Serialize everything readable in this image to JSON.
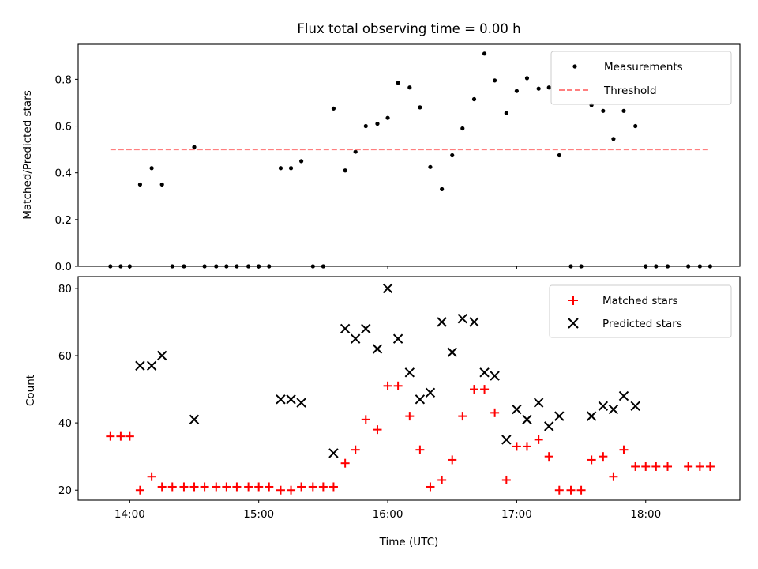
{
  "chart_data": [
    {
      "type": "scatter",
      "title": "Flux total observing time = 0.00 h",
      "xlabel": "",
      "ylabel": "Matched/Predicted stars",
      "xlim": [
        13.6,
        18.73
      ],
      "ylim": [
        0,
        0.95
      ],
      "yticks": [
        0.0,
        0.2,
        0.4,
        0.6,
        0.8
      ],
      "ytick_labels": [
        "0.0",
        "0.2",
        "0.4",
        "0.6",
        "0.8"
      ],
      "xticks": [
        14,
        15,
        16,
        17,
        18
      ],
      "legend_position": "top-right",
      "series": [
        {
          "name": "Measurements",
          "marker": "dot",
          "color": "#000000",
          "points": [
            [
              13.85,
              0.0
            ],
            [
              13.93,
              0.0
            ],
            [
              14.0,
              0.0
            ],
            [
              14.08,
              0.35
            ],
            [
              14.17,
              0.42
            ],
            [
              14.25,
              0.35
            ],
            [
              14.33,
              0.0
            ],
            [
              14.42,
              0.0
            ],
            [
              14.5,
              0.51
            ],
            [
              14.58,
              0.0
            ],
            [
              14.67,
              0.0
            ],
            [
              14.75,
              0.0
            ],
            [
              14.83,
              0.0
            ],
            [
              14.92,
              0.0
            ],
            [
              15.0,
              0.0
            ],
            [
              15.08,
              0.0
            ],
            [
              15.17,
              0.42
            ],
            [
              15.25,
              0.42
            ],
            [
              15.33,
              0.45
            ],
            [
              15.42,
              0.0
            ],
            [
              15.5,
              0.0
            ],
            [
              15.58,
              0.675
            ],
            [
              15.67,
              0.41
            ],
            [
              15.75,
              0.49
            ],
            [
              15.83,
              0.6
            ],
            [
              15.92,
              0.61
            ],
            [
              16.0,
              0.635
            ],
            [
              16.08,
              0.785
            ],
            [
              16.17,
              0.765
            ],
            [
              16.25,
              0.68
            ],
            [
              16.33,
              0.425
            ],
            [
              16.42,
              0.33
            ],
            [
              16.5,
              0.475
            ],
            [
              16.58,
              0.59
            ],
            [
              16.67,
              0.715
            ],
            [
              16.75,
              0.91
            ],
            [
              16.83,
              0.795
            ],
            [
              16.92,
              0.655
            ],
            [
              17.0,
              0.75
            ],
            [
              17.08,
              0.805
            ],
            [
              17.17,
              0.76
            ],
            [
              17.25,
              0.765
            ],
            [
              17.33,
              0.475
            ],
            [
              17.42,
              0.0
            ],
            [
              17.5,
              0.0
            ],
            [
              17.58,
              0.69
            ],
            [
              17.67,
              0.665
            ],
            [
              17.75,
              0.545
            ],
            [
              17.83,
              0.665
            ],
            [
              17.92,
              0.6
            ],
            [
              18.0,
              0.0
            ],
            [
              18.08,
              0.0
            ],
            [
              18.17,
              0.0
            ],
            [
              18.33,
              0.0
            ],
            [
              18.42,
              0.0
            ],
            [
              18.5,
              0.0
            ]
          ]
        },
        {
          "name": "Threshold",
          "marker": "dashed-line",
          "color": "#ff7f7f",
          "points": [
            [
              13.85,
              0.5
            ],
            [
              18.5,
              0.5
            ]
          ]
        }
      ]
    },
    {
      "type": "scatter",
      "title": "",
      "xlabel": "Time (UTC)",
      "ylabel": "Count",
      "xlim": [
        13.6,
        18.73
      ],
      "ylim": [
        17,
        83.5
      ],
      "yticks": [
        20,
        40,
        60,
        80
      ],
      "ytick_labels": [
        "20",
        "40",
        "60",
        "80"
      ],
      "xticks": [
        14,
        15,
        16,
        17,
        18
      ],
      "xtick_labels": [
        "14:00",
        "15:00",
        "16:00",
        "17:00",
        "18:00"
      ],
      "legend_position": "top-right",
      "series": [
        {
          "name": "Matched stars",
          "marker": "plus",
          "color": "#ff0000",
          "points": [
            [
              13.85,
              36
            ],
            [
              13.93,
              36
            ],
            [
              14.0,
              36
            ],
            [
              14.08,
              20
            ],
            [
              14.17,
              24
            ],
            [
              14.25,
              21
            ],
            [
              14.33,
              21
            ],
            [
              14.42,
              21
            ],
            [
              14.5,
              21
            ],
            [
              14.58,
              21
            ],
            [
              14.67,
              21
            ],
            [
              14.75,
              21
            ],
            [
              14.83,
              21
            ],
            [
              14.92,
              21
            ],
            [
              15.0,
              21
            ],
            [
              15.08,
              21
            ],
            [
              15.17,
              20
            ],
            [
              15.25,
              20
            ],
            [
              15.33,
              21
            ],
            [
              15.42,
              21
            ],
            [
              15.5,
              21
            ],
            [
              15.58,
              21
            ],
            [
              15.67,
              28
            ],
            [
              15.75,
              32
            ],
            [
              15.83,
              41
            ],
            [
              15.92,
              38
            ],
            [
              16.0,
              51
            ],
            [
              16.08,
              51
            ],
            [
              16.17,
              42
            ],
            [
              16.25,
              32
            ],
            [
              16.33,
              21
            ],
            [
              16.42,
              23
            ],
            [
              16.5,
              29
            ],
            [
              16.58,
              42
            ],
            [
              16.67,
              50
            ],
            [
              16.75,
              50
            ],
            [
              16.83,
              43
            ],
            [
              16.92,
              23
            ],
            [
              17.0,
              33
            ],
            [
              17.08,
              33
            ],
            [
              17.17,
              35
            ],
            [
              17.25,
              30
            ],
            [
              17.33,
              20
            ],
            [
              17.42,
              20
            ],
            [
              17.5,
              20
            ],
            [
              17.58,
              29
            ],
            [
              17.67,
              30
            ],
            [
              17.75,
              24
            ],
            [
              17.83,
              32
            ],
            [
              17.92,
              27
            ],
            [
              18.0,
              27
            ],
            [
              18.08,
              27
            ],
            [
              18.17,
              27
            ],
            [
              18.33,
              27
            ],
            [
              18.42,
              27
            ],
            [
              18.5,
              27
            ]
          ]
        },
        {
          "name": "Predicted stars",
          "marker": "x",
          "color": "#000000",
          "points": [
            [
              14.08,
              57
            ],
            [
              14.17,
              57
            ],
            [
              14.25,
              60
            ],
            [
              14.5,
              41
            ],
            [
              15.17,
              47
            ],
            [
              15.25,
              47
            ],
            [
              15.33,
              46
            ],
            [
              15.58,
              31
            ],
            [
              15.67,
              68
            ],
            [
              15.75,
              65
            ],
            [
              15.83,
              68
            ],
            [
              15.92,
              62
            ],
            [
              16.0,
              80
            ],
            [
              16.08,
              65
            ],
            [
              16.17,
              55
            ],
            [
              16.25,
              47
            ],
            [
              16.33,
              49
            ],
            [
              16.42,
              70
            ],
            [
              16.5,
              61
            ],
            [
              16.58,
              71
            ],
            [
              16.67,
              70
            ],
            [
              16.75,
              55
            ],
            [
              16.83,
              54
            ],
            [
              16.92,
              35
            ],
            [
              17.0,
              44
            ],
            [
              17.08,
              41
            ],
            [
              17.17,
              46
            ],
            [
              17.25,
              39
            ],
            [
              17.33,
              42
            ],
            [
              17.58,
              42
            ],
            [
              17.67,
              45
            ],
            [
              17.75,
              44
            ],
            [
              17.83,
              48
            ],
            [
              17.92,
              45
            ]
          ]
        }
      ]
    }
  ]
}
